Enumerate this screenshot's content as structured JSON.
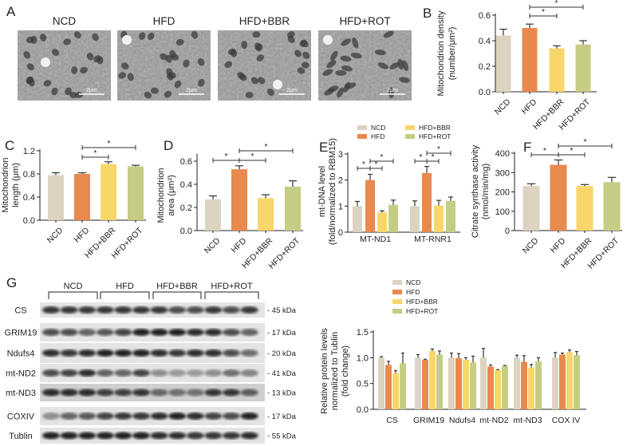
{
  "panel_labels": {
    "A": "A",
    "B": "B",
    "C": "C",
    "D": "D",
    "E": "E",
    "F": "F",
    "G": "G"
  },
  "colors": {
    "NCD": "#dcd3c1",
    "HFD": "#e8894e",
    "HFD+BBR": "#f9d66a",
    "HFD+ROT": "#c5cd84"
  },
  "panel_a": {
    "titles": [
      "NCD",
      "HFD",
      "HFD+BBR",
      "HFD+ROT"
    ],
    "scale_bar": "2μm",
    "image_kind": "electron-micrograph"
  },
  "panel_g_blot": {
    "groups": [
      "NCD",
      "HFD",
      "HFD+BBR",
      "HFD+ROT"
    ],
    "rows": [
      {
        "label": "CS",
        "size": "45 kDa"
      },
      {
        "label": "GRIM19",
        "size": "17 kDa"
      },
      {
        "label": "Ndufs4",
        "size": "20 kDa"
      },
      {
        "label": "mt-ND2",
        "size": "41 kDa"
      },
      {
        "label": "mt-ND3",
        "size": "13 kDa"
      },
      {
        "label": "COXIV",
        "size": "17 kDa"
      },
      {
        "label": "Tublin",
        "size": "55 kDa"
      }
    ]
  },
  "chart_data": [
    {
      "id": "B",
      "type": "bar",
      "ylabel": [
        "Mitochondrion density",
        "(number/μm²)"
      ],
      "categories": [
        "NCD",
        "HFD",
        "HFD+BBR",
        "HFD+ROT"
      ],
      "values": [
        0.44,
        0.5,
        0.34,
        0.37
      ],
      "errors": [
        0.05,
        0.03,
        0.02,
        0.03
      ],
      "ylim": [
        0,
        0.6
      ],
      "yticks": [
        "0.0",
        "0.2",
        "0.4",
        "0.6"
      ],
      "grid": false,
      "significance": [
        {
          "from": 1,
          "to": 2,
          "label": "*"
        },
        {
          "from": 1,
          "to": 3,
          "label": "*"
        }
      ]
    },
    {
      "id": "C",
      "type": "bar",
      "ylabel": [
        "Mitochondrion",
        "length (μm)"
      ],
      "categories": [
        "NCD",
        "HFD",
        "HFD+BBR",
        "HFD+ROT"
      ],
      "values": [
        0.78,
        0.8,
        0.97,
        0.93
      ],
      "errors": [
        0.04,
        0.02,
        0.04,
        0.02
      ],
      "ylim": [
        0,
        1.2
      ],
      "yticks": [
        "0.0",
        "0.4",
        "0.8",
        "1.2"
      ],
      "grid": false,
      "significance": [
        {
          "from": 1,
          "to": 2,
          "label": "*"
        },
        {
          "from": 1,
          "to": 3,
          "label": "*"
        }
      ]
    },
    {
      "id": "D",
      "type": "bar",
      "ylabel": [
        "Mitochondrion",
        "area (μm²)"
      ],
      "categories": [
        "NCD",
        "HFD",
        "HFD+BBR",
        "HFD+ROT"
      ],
      "values": [
        0.27,
        0.53,
        0.28,
        0.38
      ],
      "errors": [
        0.03,
        0.03,
        0.03,
        0.05
      ],
      "ylim": [
        0,
        0.65
      ],
      "yticks": [
        "0.0",
        "0.2",
        "0.4",
        "0.6"
      ],
      "grid": false,
      "significance": [
        {
          "from": 0,
          "to": 1,
          "label": "*"
        },
        {
          "from": 1,
          "to": 2,
          "label": "*"
        },
        {
          "from": 1,
          "to": 3,
          "label": "*"
        }
      ]
    },
    {
      "id": "E",
      "type": "bar",
      "ylabel": [
        "mt-DNA level",
        "(fold/normalized to RBM15)"
      ],
      "categories": [
        "MT-ND1",
        "MT-RNR1"
      ],
      "series": [
        {
          "name": "NCD",
          "values": [
            1.0,
            1.0
          ],
          "errors": [
            0.18,
            0.2
          ]
        },
        {
          "name": "HFD",
          "values": [
            2.0,
            2.27
          ],
          "errors": [
            0.22,
            0.25
          ]
        },
        {
          "name": "HFD+BBR",
          "values": [
            0.75,
            1.02
          ],
          "errors": [
            0.07,
            0.2
          ]
        },
        {
          "name": "HFD+ROT",
          "values": [
            1.05,
            1.2
          ],
          "errors": [
            0.18,
            0.15
          ]
        }
      ],
      "ylim": [
        0,
        3
      ],
      "yticks": [
        "0",
        "1",
        "2",
        "3"
      ],
      "grid": false,
      "legend": "top",
      "significance": [
        {
          "group": 0,
          "from": 0,
          "to": 1,
          "label": "*"
        },
        {
          "group": 0,
          "from": 1,
          "to": 2,
          "label": "*"
        },
        {
          "group": 0,
          "from": 1,
          "to": 3,
          "label": "*"
        },
        {
          "group": 1,
          "from": 0,
          "to": 1,
          "label": "*"
        },
        {
          "group": 1,
          "from": 1,
          "to": 2,
          "label": "*"
        },
        {
          "group": 1,
          "from": 1,
          "to": 3,
          "label": "*"
        }
      ]
    },
    {
      "id": "F",
      "type": "bar",
      "ylabel": [
        "Citrate synthase activity",
        "(nmol/min/mg)"
      ],
      "categories": [
        "NCD",
        "HFD",
        "HFD+BBR",
        "HFD+ROT"
      ],
      "values": [
        230,
        340,
        230,
        250
      ],
      "errors": [
        12,
        25,
        8,
        25
      ],
      "ylim": [
        0,
        400
      ],
      "yticks": [
        "0",
        "100",
        "200",
        "300",
        "400"
      ],
      "grid": false,
      "significance": [
        {
          "from": 0,
          "to": 1,
          "label": "*"
        },
        {
          "from": 1,
          "to": 2,
          "label": "*"
        },
        {
          "from": 1,
          "to": 3,
          "label": "*"
        }
      ]
    },
    {
      "id": "G",
      "type": "bar",
      "ylabel": [
        "Relative protein levels",
        "normalized to Tublin",
        "(fold change)"
      ],
      "categories": [
        "CS",
        "GRIM19",
        "Ndufs4",
        "mt-ND2",
        "mt-ND3",
        "COX IV"
      ],
      "series": [
        {
          "name": "NCD",
          "values": [
            1.0,
            1.0,
            1.0,
            1.0,
            1.0,
            1.0
          ],
          "errors": [
            0.02,
            0.06,
            0.09,
            0.18,
            0.05,
            0.1
          ]
        },
        {
          "name": "HFD",
          "values": [
            0.86,
            0.96,
            0.99,
            0.83,
            0.92,
            1.06
          ],
          "errors": [
            0.07,
            0.01,
            0.09,
            0.03,
            0.12,
            0.03
          ]
        },
        {
          "name": "HFD+BBR",
          "values": [
            0.7,
            1.13,
            0.96,
            0.76,
            0.81,
            1.11
          ],
          "errors": [
            0.05,
            0.04,
            0.04,
            0.01,
            0.06,
            0.04
          ]
        },
        {
          "name": "HFD+ROT",
          "values": [
            0.89,
            1.06,
            0.91,
            0.84,
            0.93,
            1.05
          ],
          "errors": [
            0.2,
            0.07,
            0.12,
            0.01,
            0.07,
            0.07
          ]
        }
      ],
      "ylim": [
        0,
        1.5
      ],
      "yticks": [
        "0.0",
        "0.5",
        "1.0",
        "1.5"
      ],
      "grid": false,
      "legend": "top-left"
    }
  ]
}
